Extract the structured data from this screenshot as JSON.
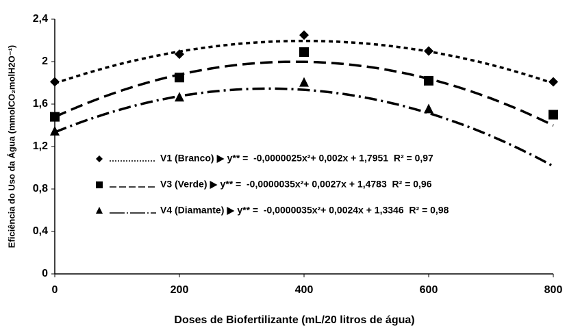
{
  "chart_data": {
    "type": "scatter",
    "xlabel": "Doses de Biofertilizante (mL/20 litros de água)",
    "ylabel": "Eficiência do Uso da Água (mmolCO₂molH2O⁻¹)",
    "x": [
      0,
      200,
      400,
      600,
      800
    ],
    "xlim": [
      0,
      800
    ],
    "xticks": [
      0,
      200,
      400,
      600,
      800
    ],
    "ylim": [
      0,
      2.4
    ],
    "yticks": [
      0,
      {
        "value": 0.4,
        "label": "0,4"
      },
      {
        "value": 0.8,
        "label": "0,8"
      },
      {
        "value": 1.2,
        "label": "1,2"
      },
      {
        "value": 1.6,
        "label": "1,6"
      },
      2,
      {
        "value": 2.4,
        "label": "2,4"
      }
    ],
    "series": [
      {
        "name": "V1 (Branco)",
        "color": "#000000",
        "marker": "diamond",
        "line": "dotted",
        "values": [
          1.81,
          2.07,
          2.25,
          2.1,
          1.81
        ],
        "fit": [
          -2.5e-06,
          0.002,
          1.7951
        ],
        "equation": "y** =  -0,0000025x²+ 0,002x + 1,7951  R² = 0,97"
      },
      {
        "name": "V3 (Verde)",
        "color": "#000000",
        "marker": "square",
        "line": "dashed",
        "values": [
          1.48,
          1.85,
          2.09,
          1.82,
          1.5
        ],
        "fit": [
          -3.5e-06,
          0.0027,
          1.4783
        ],
        "equation": "y** =  -0,0000035x²+ 0,0027x + 1,4783  R² = 0,96"
      },
      {
        "name": "V4 (Diamante)",
        "color": "#000000",
        "marker": "triangle",
        "line": "dashdot",
        "values": [
          1.34,
          1.66,
          1.8,
          1.55,
          null
        ],
        "fit": [
          -3.5e-06,
          0.0024,
          1.3346
        ],
        "equation": "y** =  -0,0000035x²+ 0,0024x + 1,3346  R² = 0,98"
      }
    ]
  }
}
